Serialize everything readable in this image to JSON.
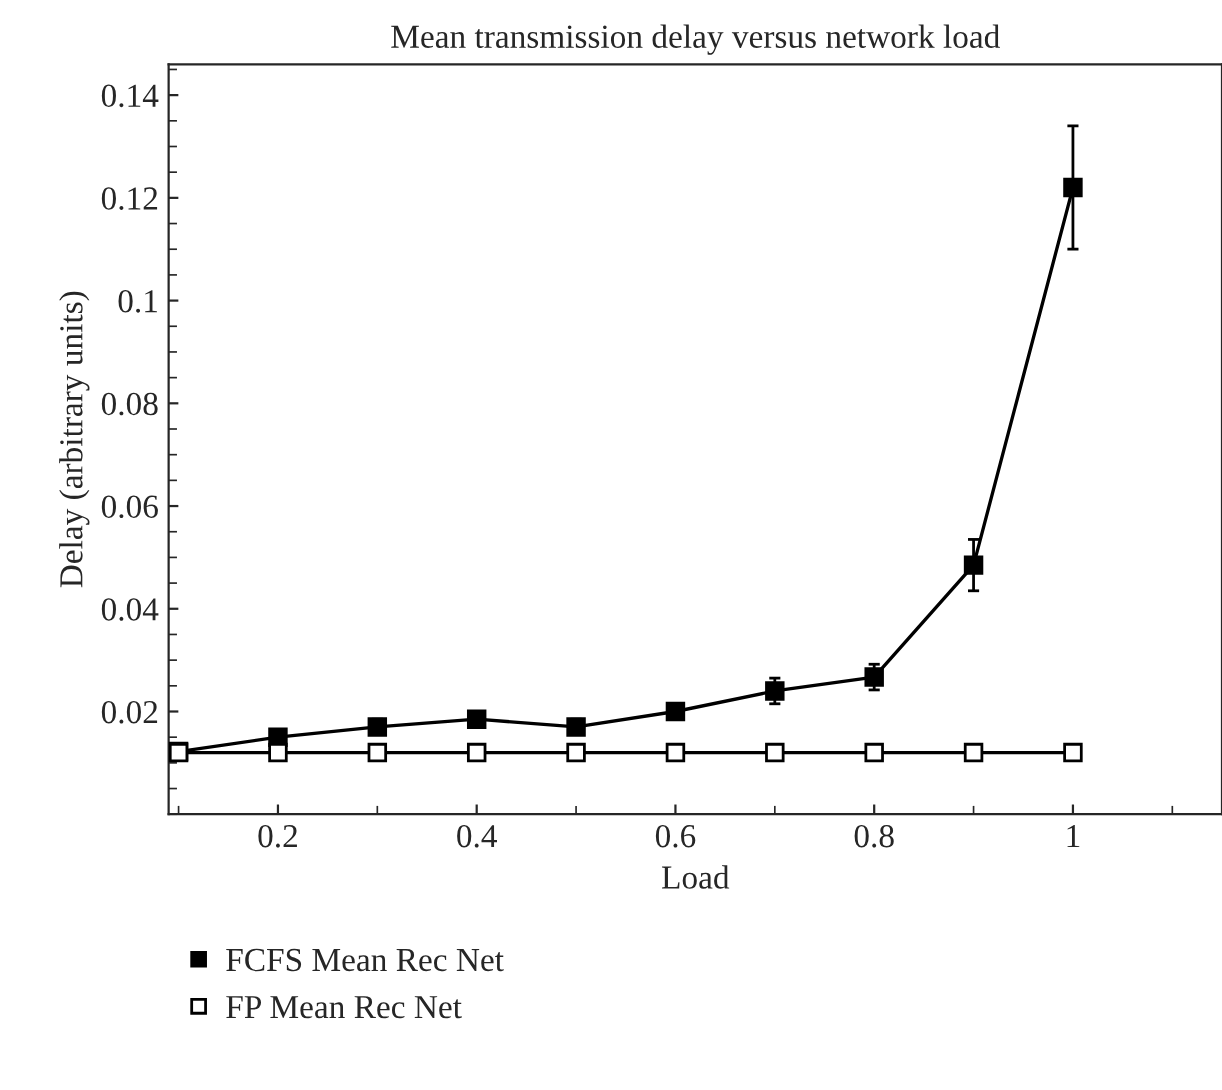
{
  "chart_data": {
    "type": "line",
    "title": "Mean transmission delay versus network load",
    "xlabel": "Load",
    "ylabel": "Delay (arbitrary units)",
    "x": [
      0.1,
      0.2,
      0.3,
      0.4,
      0.5,
      0.6,
      0.7,
      0.8,
      0.9,
      1.0
    ],
    "series": [
      {
        "name": "FCFS Mean Rec Net",
        "color": "#000000",
        "marker": "square",
        "values": [
          0.0122,
          0.015,
          0.017,
          0.0185,
          0.017,
          0.02,
          0.024,
          0.0267,
          0.0485,
          0.122
        ],
        "errors": [
          null,
          null,
          0.0015,
          0.0015,
          0.0015,
          0.0015,
          0.0025,
          0.0025,
          0.005,
          0.012
        ]
      },
      {
        "name": "FP Mean Rec Net",
        "color": "#000000",
        "marker": "square",
        "values": [
          0.012,
          0.012,
          0.012,
          0.012,
          0.012,
          0.012,
          0.012,
          0.012,
          0.012,
          0.012
        ]
      }
    ],
    "xlim": [
      0.09,
      1.15
    ],
    "ylim": [
      0,
      0.146
    ],
    "xticks": [
      0.2,
      0.4,
      0.6,
      0.8,
      1
    ],
    "yticks": [
      0.02,
      0.04,
      0.06,
      0.08,
      0.1,
      0.12,
      0.14
    ],
    "grid": false,
    "legend": "bottom left",
    "line_style": "solid"
  }
}
